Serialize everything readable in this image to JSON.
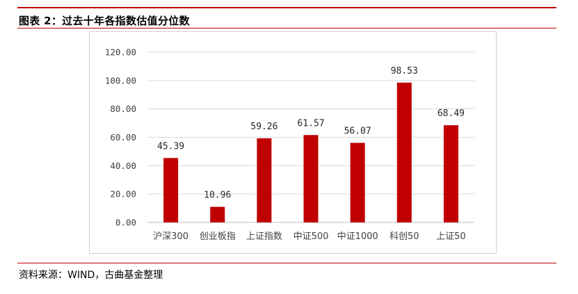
{
  "figure": {
    "title": "图表 2：过去十年各指数估值分位数",
    "source": "资料来源：WIND，古曲基金整理"
  },
  "colors": {
    "accent_rule": "#c00000",
    "bar": "#c00000",
    "gridline": "#d9d9d9"
  },
  "chart_data": {
    "type": "bar",
    "title": "",
    "xlabel": "",
    "ylabel": "",
    "categories": [
      "沪深300",
      "创业板指",
      "上证指数",
      "中证500",
      "中证1000",
      "科创50",
      "上证50"
    ],
    "values": [
      45.39,
      10.96,
      59.26,
      61.57,
      56.07,
      98.53,
      68.49
    ],
    "value_labels": [
      "45.39",
      "10.96",
      "59.26",
      "61.57",
      "56.07",
      "98.53",
      "68.49"
    ],
    "ylim": [
      0,
      120
    ],
    "yticks": [
      0,
      20,
      40,
      60,
      80,
      100,
      120
    ],
    "ytick_labels": [
      "0.00",
      "20.00",
      "40.00",
      "60.00",
      "80.00",
      "100.00",
      "120.00"
    ],
    "grid": true,
    "legend": "none"
  }
}
